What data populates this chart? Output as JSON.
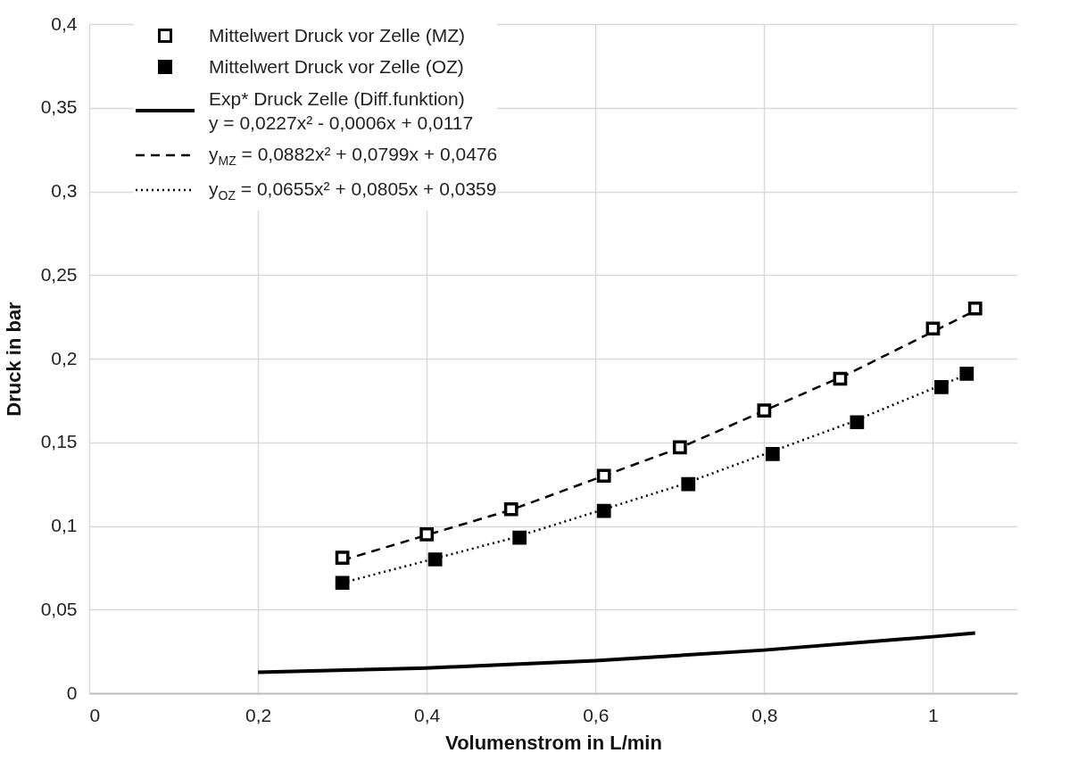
{
  "chart_data": {
    "type": "scatter",
    "xlabel": "Volumenstrom  in L/min",
    "ylabel": "Druck in bar",
    "xlim": [
      0,
      1.1
    ],
    "ylim": [
      0,
      0.4
    ],
    "xticks": [
      0,
      {
        "value": 0.2,
        "label": "0,2"
      },
      {
        "value": 0.4,
        "label": "0,4"
      },
      {
        "value": 0.6,
        "label": "0,6"
      },
      {
        "value": 0.8,
        "label": "0,8"
      },
      1
    ],
    "yticks": [
      0,
      {
        "value": 0.05,
        "label": "0,05"
      },
      {
        "value": 0.1,
        "label": "0,1"
      },
      {
        "value": 0.15,
        "label": "0,15"
      },
      {
        "value": 0.2,
        "label": "0,2"
      },
      {
        "value": 0.25,
        "label": "0,25"
      },
      {
        "value": 0.3,
        "label": "0,3"
      },
      {
        "value": 0.35,
        "label": "0,35"
      },
      {
        "value": 0.4,
        "label": "0,4"
      }
    ],
    "grid": true,
    "legend": "top left",
    "series": [
      {
        "name": "Mittelwert Druck vor Zelle (MZ)",
        "marker": "square",
        "color": "#ffffff",
        "x": [
          0.3,
          0.4,
          0.5,
          0.61,
          0.7,
          0.8,
          0.89,
          1.0,
          1.05
        ],
        "values": [
          0.081,
          0.095,
          0.11,
          0.13,
          0.147,
          0.169,
          0.188,
          0.218,
          0.23
        ]
      },
      {
        "name": "Mittelwert Druck vor Zelle (OZ)",
        "type": "scatter",
        "marker": "square",
        "color": "#000000",
        "x": [
          0.3,
          0.41,
          0.51,
          0.61,
          0.71,
          0.81,
          0.91,
          1.01,
          1.04
        ],
        "values": [
          0.066,
          0.08,
          0.093,
          0.109,
          0.125,
          0.143,
          0.162,
          0.183,
          0.191
        ]
      },
      {
        "name": "Exp* Druck Zelle (Diff.funktion)\ny = 0,0227x² - 0,0006x + 0,0117",
        "type": "line",
        "line_style": "solid",
        "color": "#000000",
        "x": [
          0.2,
          0.4,
          0.6,
          0.8,
          1.0,
          1.05
        ],
        "values": [
          0.0125,
          0.0151,
          0.0195,
          0.0258,
          0.0338,
          0.036
        ]
      },
      {
        "name": "y$_{MZ}$ = 0,0882x² + 0,0799x + 0,0476",
        "type": "line",
        "line_style": "dashed",
        "color": "#000000",
        "x": [
          0.3,
          0.5,
          0.7,
          0.9,
          1.05
        ],
        "values": [
          0.0795,
          0.1096,
          0.1467,
          0.191,
          0.2287
        ]
      },
      {
        "name": "y$_{OZ}$ = 0,0655x² + 0,0805x + 0,0359",
        "type": "line",
        "line_style": "dotted",
        "color": "#000000",
        "x": [
          0.3,
          0.5,
          0.7,
          0.9,
          1.04
        ],
        "values": [
          0.066,
          0.0925,
          0.1243,
          0.1614,
          0.1905
        ]
      }
    ]
  }
}
